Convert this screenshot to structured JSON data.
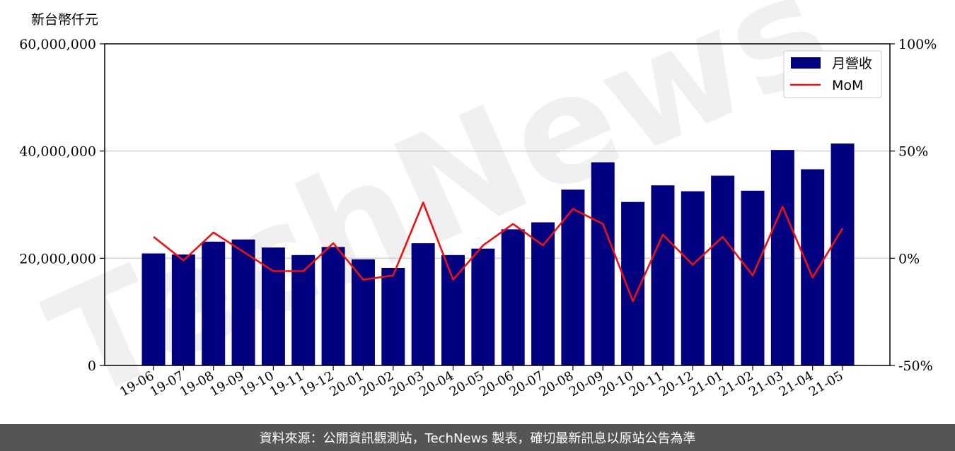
{
  "chart_data": {
    "type": "bar",
    "y_unit_label": "新台幣仟元",
    "categories": [
      "19-06",
      "19-07",
      "19-08",
      "19-09",
      "19-10",
      "19-11",
      "19-12",
      "20-01",
      "20-02",
      "20-03",
      "20-04",
      "20-05",
      "20-06",
      "20-07",
      "20-08",
      "20-09",
      "20-10",
      "20-11",
      "20-12",
      "21-01",
      "21-02",
      "21-03",
      "21-04",
      "21-05"
    ],
    "series": [
      {
        "name": "月營收",
        "type": "bar",
        "axis": "left",
        "color": "#000080",
        "values": [
          20900000,
          20700000,
          23100000,
          23500000,
          22000000,
          20600000,
          22100000,
          19800000,
          18200000,
          22800000,
          20600000,
          21800000,
          25400000,
          26700000,
          32800000,
          37900000,
          30500000,
          33600000,
          32500000,
          35400000,
          32600000,
          40200000,
          36600000,
          41400000
        ]
      },
      {
        "name": "MoM",
        "type": "line",
        "axis": "right",
        "color": "#ee1111",
        "values": [
          10,
          -1,
          12,
          3,
          -6,
          -6,
          7,
          -10,
          -8,
          26,
          -10,
          6,
          16,
          6,
          23,
          16,
          -20,
          11,
          -3,
          10,
          -8,
          24,
          -9,
          14
        ]
      }
    ],
    "ylim_left": [
      0,
      60000000
    ],
    "ylim_right": [
      -50,
      100
    ],
    "yticks_left": [
      {
        "value": 0,
        "label": "0"
      },
      {
        "value": 20000000,
        "label": "20,000,000"
      },
      {
        "value": 40000000,
        "label": "40,000,000"
      },
      {
        "value": 60000000,
        "label": "60,000,000"
      }
    ],
    "yticks_right": [
      {
        "value": -50,
        "label": "-50%"
      },
      {
        "value": 0,
        "label": "0%"
      },
      {
        "value": 50,
        "label": "50%"
      },
      {
        "value": 100,
        "label": "100%"
      }
    ],
    "grid": "horizontal",
    "legend_position": "top-right"
  },
  "watermark": {
    "text": "TechNews"
  },
  "footer": {
    "text": "資料來源：公開資訊觀測站，TechNews 製表，確切最新訊息以原站公告為準"
  }
}
